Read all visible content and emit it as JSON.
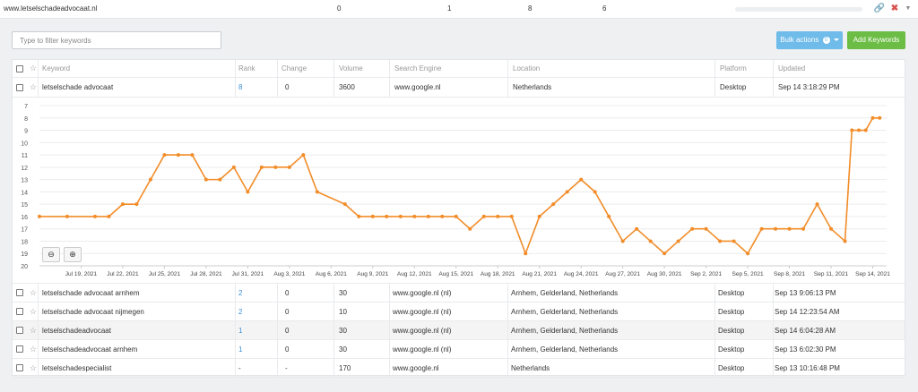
{
  "top_row": {
    "domain": "www.letselschadeadvocaat.nl",
    "value_1": "0",
    "value_2": "1",
    "value_3": "8",
    "value_4": "6",
    "icons": [
      "link-icon",
      "close-icon",
      "caret-down-icon"
    ]
  },
  "toolbar": {
    "filter_placeholder": "Type to filter keywords",
    "bulk_label": "Bulk actions",
    "bulk_badge": "0",
    "add_label": "Add Keywords",
    "bulk_color": "#6fbbe9",
    "add_color": "#6cbd45"
  },
  "table": {
    "headers": {
      "keyword": "Keyword",
      "rank": "Rank",
      "change": "Change",
      "volume": "Volume",
      "search_engine": "Search Engine",
      "location": "Location",
      "platform": "Platform",
      "updated": "Updated"
    },
    "expanded": {
      "keyword": "letselschade advocaat",
      "rank": "8",
      "change": "0",
      "volume": "3600",
      "engine": "www.google.nl",
      "location": "Netherlands",
      "platform": "Desktop",
      "updated": "Sep 14 3:18:29 PM"
    },
    "rows": [
      {
        "keyword": "letselschade advocaat arnhem",
        "rank": "2",
        "change": "0",
        "volume": "30",
        "engine": "www.google.nl (nl)",
        "location": "Arnhem, Gelderland, Netherlands",
        "platform": "Desktop",
        "updated": "Sep 13 9:06:13 PM"
      },
      {
        "keyword": "letselschade advocaat nijmegen",
        "rank": "2",
        "change": "0",
        "volume": "10",
        "engine": "www.google.nl (nl)",
        "location": "Arnhem, Gelderland, Netherlands",
        "platform": "Desktop",
        "updated": "Sep 14 12:23:54 AM"
      },
      {
        "keyword": "letselschadeadvocaat",
        "rank": "1",
        "change": "0",
        "volume": "30",
        "engine": "www.google.nl (nl)",
        "location": "Arnhem, Gelderland, Netherlands",
        "platform": "Desktop",
        "updated": "Sep 14 6:04:28 AM"
      },
      {
        "keyword": "letselschadeadvocaat arnhem",
        "rank": "1",
        "change": "0",
        "volume": "30",
        "engine": "www.google.nl (nl)",
        "location": "Arnhem, Gelderland, Netherlands",
        "platform": "Desktop",
        "updated": "Sep 13 6:02:30 PM"
      },
      {
        "keyword": "letselschadespecialist",
        "rank": "-",
        "change": "-",
        "volume": "170",
        "engine": "www.google.nl",
        "location": "Netherlands",
        "platform": "Desktop",
        "updated": "Sep 13 10:16:48 PM"
      }
    ]
  },
  "chart_data": {
    "type": "line",
    "title": "",
    "xlabel": "",
    "ylabel": "",
    "ylim": [
      20,
      7
    ],
    "y_reversed": true,
    "y_ticks": [
      7,
      8,
      9,
      10,
      11,
      12,
      13,
      14,
      15,
      16,
      17,
      18,
      19,
      20
    ],
    "x_tick_labels": [
      "Jul 19, 2021",
      "Jul 22, 2021",
      "Jul 25, 2021",
      "Jul 28, 2021",
      "Jul 31, 2021",
      "Aug 3, 2021",
      "Aug 6, 2021",
      "Aug 9, 2021",
      "Aug 12, 2021",
      "Aug 15, 2021",
      "Aug 18, 2021",
      "Aug 21, 2021",
      "Aug 24, 2021",
      "Aug 27, 2021",
      "Aug 30, 2021",
      "Sep 2, 2021",
      "Sep 5, 2021",
      "Sep 8, 2021",
      "Sep 11, 2021",
      "Sep 14, 2021"
    ],
    "x_range": [
      "2021-07-16",
      "2021-09-15"
    ],
    "series": [
      {
        "color": "#f28c28",
        "points": [
          [
            "2021-07-16",
            16
          ],
          [
            "2021-07-18",
            16
          ],
          [
            "2021-07-20",
            16
          ],
          [
            "2021-07-21",
            16
          ],
          [
            "2021-07-22",
            15
          ],
          [
            "2021-07-23",
            15
          ],
          [
            "2021-07-24",
            13
          ],
          [
            "2021-07-25",
            11
          ],
          [
            "2021-07-26",
            11
          ],
          [
            "2021-07-27",
            11
          ],
          [
            "2021-07-28",
            13
          ],
          [
            "2021-07-29",
            13
          ],
          [
            "2021-07-30",
            12
          ],
          [
            "2021-07-31",
            14
          ],
          [
            "2021-08-01",
            12
          ],
          [
            "2021-08-02",
            12
          ],
          [
            "2021-08-03",
            12
          ],
          [
            "2021-08-04",
            11
          ],
          [
            "2021-08-05",
            14
          ],
          [
            "2021-08-07",
            15
          ],
          [
            "2021-08-08",
            16
          ],
          [
            "2021-08-09",
            16
          ],
          [
            "2021-08-10",
            16
          ],
          [
            "2021-08-11",
            16
          ],
          [
            "2021-08-12",
            16
          ],
          [
            "2021-08-13",
            16
          ],
          [
            "2021-08-14",
            16
          ],
          [
            "2021-08-15",
            16
          ],
          [
            "2021-08-16",
            17
          ],
          [
            "2021-08-17",
            16
          ],
          [
            "2021-08-18",
            16
          ],
          [
            "2021-08-19",
            16
          ],
          [
            "2021-08-20",
            19
          ],
          [
            "2021-08-21",
            16
          ],
          [
            "2021-08-22",
            15
          ],
          [
            "2021-08-23",
            14
          ],
          [
            "2021-08-24",
            13
          ],
          [
            "2021-08-25",
            14
          ],
          [
            "2021-08-26",
            16
          ],
          [
            "2021-08-27",
            18
          ],
          [
            "2021-08-28",
            17
          ],
          [
            "2021-08-29",
            18
          ],
          [
            "2021-08-30",
            19
          ],
          [
            "2021-08-31",
            18
          ],
          [
            "2021-09-01",
            17
          ],
          [
            "2021-09-02",
            17
          ],
          [
            "2021-09-03",
            18
          ],
          [
            "2021-09-04",
            18
          ],
          [
            "2021-09-05",
            19
          ],
          [
            "2021-09-06",
            17
          ],
          [
            "2021-09-07",
            17
          ],
          [
            "2021-09-08",
            17
          ],
          [
            "2021-09-09",
            17
          ],
          [
            "2021-09-10",
            15
          ],
          [
            "2021-09-11",
            17
          ],
          [
            "2021-09-12",
            18
          ],
          [
            "2021-09-12T12",
            9
          ],
          [
            "2021-09-13",
            9
          ],
          [
            "2021-09-13T12",
            9
          ],
          [
            "2021-09-14",
            8
          ],
          [
            "2021-09-14T12",
            8
          ]
        ]
      }
    ],
    "grid": "horizontal",
    "zoom_controls": [
      "zoom-out-icon",
      "zoom-in-icon"
    ]
  }
}
